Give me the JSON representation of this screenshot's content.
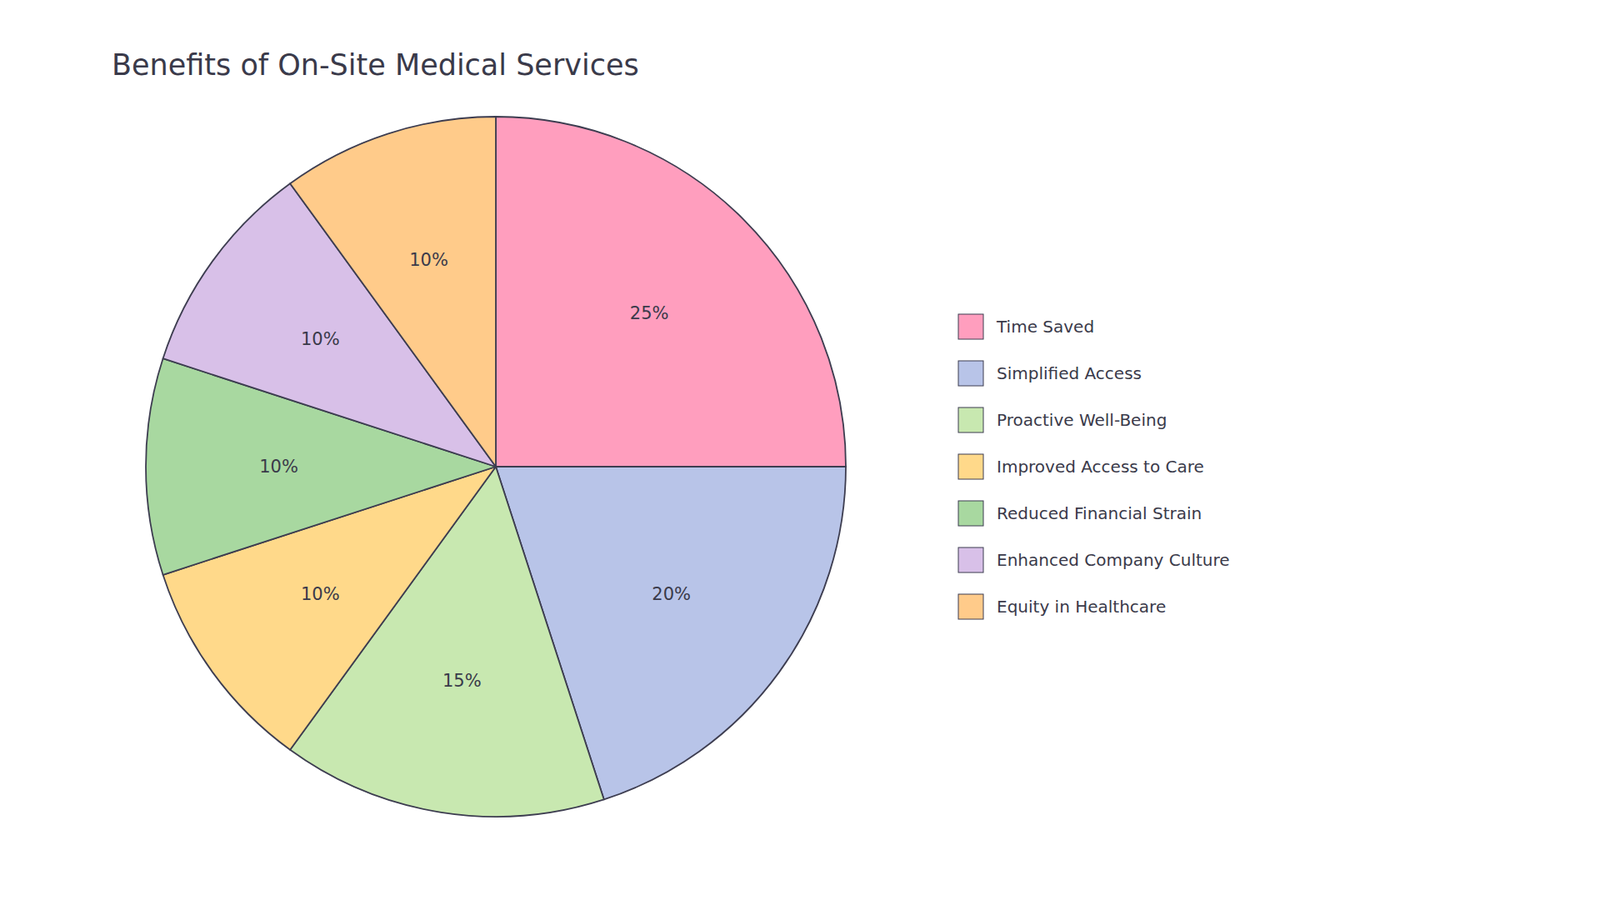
{
  "chart_data": {
    "type": "pie",
    "title": "Benefits of On-Site Medical Services",
    "categories": [
      "Time Saved",
      "Simplified Access",
      "Proactive Well-Being",
      "Improved Access to Care",
      "Reduced Financial Strain",
      "Enhanced Company Culture",
      "Equity in Healthcare"
    ],
    "values": [
      25,
      20,
      15,
      10,
      10,
      10,
      10
    ],
    "value_labels": [
      "25%",
      "20%",
      "15%",
      "10%",
      "10%",
      "10%",
      "10%"
    ],
    "colors": [
      "#FF9EBE",
      "#B8C4E8",
      "#C8E8B0",
      "#FFD98A",
      "#A8D8A0",
      "#D8C0E8",
      "#FFCB8A"
    ],
    "data_labels": true,
    "legend": "right"
  }
}
